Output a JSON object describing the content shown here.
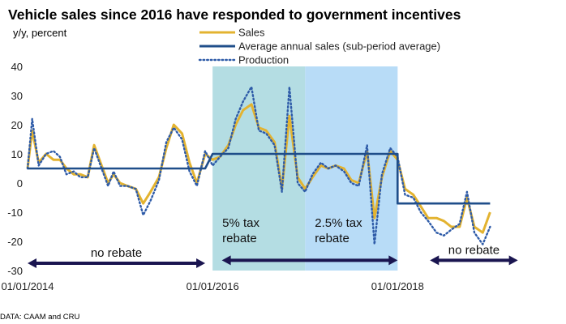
{
  "chart_data": {
    "type": "line",
    "title": "Vehicle sales since 2016 have responded to government incentives",
    "ylabel": "y/y, percent",
    "source": "DATA: CAAM and CRU",
    "ylim": [
      -30,
      40
    ],
    "yticks": [
      40,
      30,
      20,
      10,
      0,
      -10,
      -20,
      -30
    ],
    "xrange": [
      2014.0,
      2019.75
    ],
    "xticks": [
      {
        "x": 2014.0,
        "label": "01/01/2014"
      },
      {
        "x": 2016.0,
        "label": "01/01/2016"
      },
      {
        "x": 2018.0,
        "label": "01/01/2018"
      }
    ],
    "legend": [
      {
        "label": "Sales",
        "color": "#E3B330",
        "style": "solid"
      },
      {
        "label": "Average annual sales (sub-period average)",
        "color": "#1F4E8A",
        "style": "solid"
      },
      {
        "label": "Production",
        "color": "#2E5BA8",
        "style": "dotted"
      }
    ],
    "shaded_regions": [
      {
        "x0": 2016.0,
        "x1": 2017.0,
        "color": "#B4DDE3",
        "label_lines": [
          "5% tax",
          "rebate"
        ]
      },
      {
        "x0": 2017.0,
        "x1": 2018.0,
        "color": "#B8DCF7",
        "label_lines": [
          "2.5% tax",
          "rebate"
        ]
      }
    ],
    "period_arrows": [
      {
        "x0": 2014.0,
        "x1": 2015.92,
        "y": -27.5,
        "label": "no rebate"
      },
      {
        "x0": 2016.1,
        "x1": 2018.0,
        "y": -26.5,
        "label": ""
      },
      {
        "x0": 2018.35,
        "x1": 2019.3,
        "y": -26.5,
        "label": "no rebate"
      }
    ],
    "series": [
      {
        "name": "Sales",
        "points": [
          [
            2014.0,
            5
          ],
          [
            2014.05,
            18
          ],
          [
            2014.12,
            7
          ],
          [
            2014.2,
            10
          ],
          [
            2014.28,
            8
          ],
          [
            2014.35,
            8
          ],
          [
            2014.42,
            5
          ],
          [
            2014.5,
            3
          ],
          [
            2014.57,
            3
          ],
          [
            2014.65,
            2
          ],
          [
            2014.72,
            13
          ],
          [
            2014.8,
            6
          ],
          [
            2014.87,
            0
          ],
          [
            2014.93,
            3
          ],
          [
            2015.0,
            0
          ],
          [
            2015.08,
            -1
          ],
          [
            2015.17,
            -2
          ],
          [
            2015.25,
            -7
          ],
          [
            2015.33,
            -3
          ],
          [
            2015.42,
            2
          ],
          [
            2015.5,
            12
          ],
          [
            2015.58,
            20
          ],
          [
            2015.67,
            17
          ],
          [
            2015.75,
            7
          ],
          [
            2015.83,
            0
          ],
          [
            2015.92,
            10
          ],
          [
            2016.0,
            8
          ],
          [
            2016.08,
            9
          ],
          [
            2016.17,
            13
          ],
          [
            2016.25,
            20
          ],
          [
            2016.33,
            25
          ],
          [
            2016.42,
            27
          ],
          [
            2016.5,
            19
          ],
          [
            2016.58,
            18
          ],
          [
            2016.67,
            14
          ],
          [
            2016.75,
            -2
          ],
          [
            2016.83,
            23
          ],
          [
            2016.92,
            2
          ],
          [
            2017.0,
            -2
          ],
          [
            2017.08,
            2
          ],
          [
            2017.17,
            6
          ],
          [
            2017.25,
            5
          ],
          [
            2017.33,
            6
          ],
          [
            2017.42,
            5
          ],
          [
            2017.5,
            1
          ],
          [
            2017.58,
            0
          ],
          [
            2017.67,
            11
          ],
          [
            2017.75,
            -12
          ],
          [
            2017.83,
            2
          ],
          [
            2017.92,
            11
          ],
          [
            2018.0,
            8
          ],
          [
            2018.08,
            -2
          ],
          [
            2018.17,
            -4
          ],
          [
            2018.25,
            -8
          ],
          [
            2018.33,
            -12
          ],
          [
            2018.42,
            -12
          ],
          [
            2018.5,
            -13
          ],
          [
            2018.58,
            -15
          ],
          [
            2018.67,
            -15
          ],
          [
            2018.75,
            -5
          ],
          [
            2018.83,
            -15
          ],
          [
            2018.92,
            -17
          ],
          [
            2019.0,
            -10
          ]
        ]
      },
      {
        "name": "Production",
        "points": [
          [
            2014.0,
            5
          ],
          [
            2014.05,
            22
          ],
          [
            2014.12,
            6
          ],
          [
            2014.2,
            10
          ],
          [
            2014.28,
            11
          ],
          [
            2014.35,
            9
          ],
          [
            2014.42,
            3
          ],
          [
            2014.5,
            4
          ],
          [
            2014.57,
            2
          ],
          [
            2014.65,
            2
          ],
          [
            2014.72,
            12
          ],
          [
            2014.8,
            5
          ],
          [
            2014.87,
            -1
          ],
          [
            2014.93,
            4
          ],
          [
            2015.0,
            -1
          ],
          [
            2015.08,
            -1
          ],
          [
            2015.17,
            -2
          ],
          [
            2015.25,
            -11
          ],
          [
            2015.33,
            -6
          ],
          [
            2015.42,
            1
          ],
          [
            2015.5,
            14
          ],
          [
            2015.58,
            19
          ],
          [
            2015.67,
            15
          ],
          [
            2015.75,
            4
          ],
          [
            2015.83,
            -1
          ],
          [
            2015.92,
            11
          ],
          [
            2016.0,
            6
          ],
          [
            2016.08,
            9
          ],
          [
            2016.17,
            12
          ],
          [
            2016.25,
            22
          ],
          [
            2016.33,
            28
          ],
          [
            2016.42,
            33
          ],
          [
            2016.5,
            18
          ],
          [
            2016.58,
            17
          ],
          [
            2016.67,
            13
          ],
          [
            2016.75,
            -3
          ],
          [
            2016.83,
            33
          ],
          [
            2016.92,
            0
          ],
          [
            2017.0,
            -3
          ],
          [
            2017.08,
            3
          ],
          [
            2017.17,
            7
          ],
          [
            2017.25,
            5
          ],
          [
            2017.33,
            6
          ],
          [
            2017.42,
            4
          ],
          [
            2017.5,
            0
          ],
          [
            2017.58,
            -1
          ],
          [
            2017.67,
            13
          ],
          [
            2017.75,
            -21
          ],
          [
            2017.83,
            3
          ],
          [
            2017.92,
            12
          ],
          [
            2018.0,
            9
          ],
          [
            2018.08,
            -4
          ],
          [
            2018.17,
            -5
          ],
          [
            2018.25,
            -10
          ],
          [
            2018.33,
            -13
          ],
          [
            2018.42,
            -17
          ],
          [
            2018.5,
            -18
          ],
          [
            2018.58,
            -16
          ],
          [
            2018.67,
            -14
          ],
          [
            2018.75,
            -3
          ],
          [
            2018.83,
            -17
          ],
          [
            2018.92,
            -21
          ],
          [
            2019.0,
            -15
          ]
        ]
      },
      {
        "name": "Average annual sales (sub-period average)",
        "points": [
          [
            2014.0,
            5
          ],
          [
            2015.92,
            5
          ],
          [
            2016.0,
            10
          ],
          [
            2018.0,
            10
          ],
          [
            2018.0,
            -7
          ],
          [
            2019.0,
            -7
          ]
        ]
      }
    ]
  }
}
